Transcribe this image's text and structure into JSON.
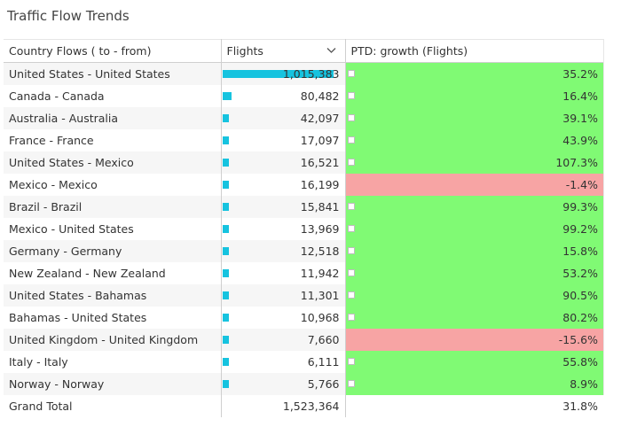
{
  "title": "Traffic Flow Trends",
  "headers": {
    "country_flows": "Country Flows ( to - from)",
    "flights": "Flights",
    "ptd_growth": "PTD: growth (Flights)"
  },
  "colors": {
    "bar": "#16c3df",
    "positive": "#80fa74",
    "negative": "#f7a4a4"
  },
  "rows": [
    {
      "flow": "United States - United States",
      "flights": "1,015,383",
      "flights_value": 1015383,
      "growth": "35.2%",
      "growth_value": 35.2
    },
    {
      "flow": "Canada - Canada",
      "flights": "80,482",
      "flights_value": 80482,
      "growth": "16.4%",
      "growth_value": 16.4
    },
    {
      "flow": "Australia - Australia",
      "flights": "42,097",
      "flights_value": 42097,
      "growth": "39.1%",
      "growth_value": 39.1
    },
    {
      "flow": "France - France",
      "flights": "17,097",
      "flights_value": 17097,
      "growth": "43.9%",
      "growth_value": 43.9
    },
    {
      "flow": "United States - Mexico",
      "flights": "16,521",
      "flights_value": 16521,
      "growth": "107.3%",
      "growth_value": 107.3
    },
    {
      "flow": "Mexico - Mexico",
      "flights": "16,199",
      "flights_value": 16199,
      "growth": "-1.4%",
      "growth_value": -1.4
    },
    {
      "flow": "Brazil - Brazil",
      "flights": "15,841",
      "flights_value": 15841,
      "growth": "99.3%",
      "growth_value": 99.3
    },
    {
      "flow": "Mexico - United States",
      "flights": "13,969",
      "flights_value": 13969,
      "growth": "99.2%",
      "growth_value": 99.2
    },
    {
      "flow": "Germany - Germany",
      "flights": "12,518",
      "flights_value": 12518,
      "growth": "15.8%",
      "growth_value": 15.8
    },
    {
      "flow": "New Zealand - New Zealand",
      "flights": "11,942",
      "flights_value": 11942,
      "growth": "53.2%",
      "growth_value": 53.2
    },
    {
      "flow": "United States - Bahamas",
      "flights": "11,301",
      "flights_value": 11301,
      "growth": "90.5%",
      "growth_value": 90.5
    },
    {
      "flow": "Bahamas - United States",
      "flights": "10,968",
      "flights_value": 10968,
      "growth": "80.2%",
      "growth_value": 80.2
    },
    {
      "flow": "United Kingdom - United Kingdom",
      "flights": "7,660",
      "flights_value": 7660,
      "growth": "-15.6%",
      "growth_value": -15.6
    },
    {
      "flow": "Italy - Italy",
      "flights": "6,111",
      "flights_value": 6111,
      "growth": "55.8%",
      "growth_value": 55.8
    },
    {
      "flow": "Norway - Norway",
      "flights": "5,766",
      "flights_value": 5766,
      "growth": "8.9%",
      "growth_value": 8.9
    }
  ],
  "grand_total": {
    "label": "Grand Total",
    "flights": "1,523,364",
    "growth": "31.8%"
  }
}
